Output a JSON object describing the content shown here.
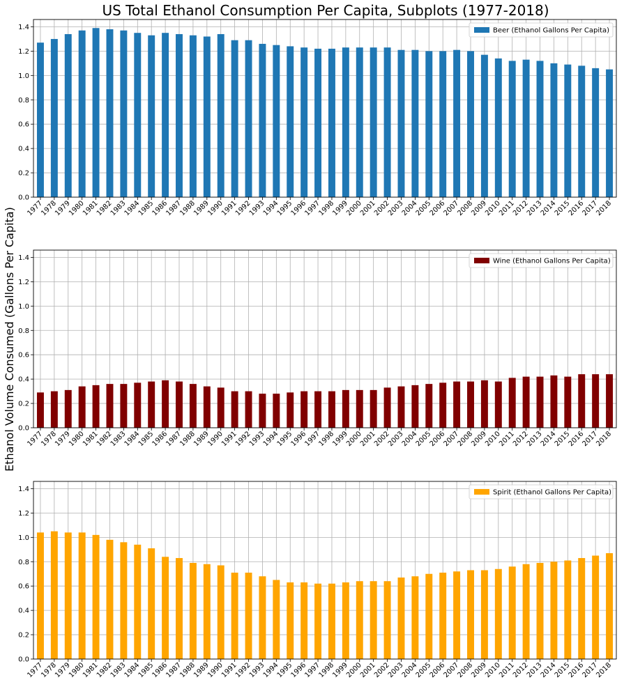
{
  "chart_data": {
    "title": "US Total Ethanol Consumption Per Capita, Subplots (1977-2018)",
    "ylabel": "Ethanol Volume Consumed (Gallons Per Capita)",
    "categories": [
      "1977",
      "1978",
      "1979",
      "1980",
      "1981",
      "1982",
      "1983",
      "1984",
      "1985",
      "1986",
      "1987",
      "1988",
      "1989",
      "1990",
      "1991",
      "1992",
      "1993",
      "1994",
      "1995",
      "1996",
      "1997",
      "1998",
      "1999",
      "2000",
      "2001",
      "2002",
      "2003",
      "2004",
      "2005",
      "2006",
      "2007",
      "2008",
      "2009",
      "2010",
      "2011",
      "2012",
      "2013",
      "2014",
      "2015",
      "2016",
      "2017",
      "2018"
    ],
    "charts": [
      {
        "type": "bar",
        "series_name": "Beer (Ethanol Gallons Per Capita)",
        "color": "#1f77b4",
        "ylim": [
          0,
          1.46
        ],
        "yticks": [
          "0.0",
          "0.2",
          "0.4",
          "0.6",
          "0.8",
          "1.0",
          "1.2",
          "1.4"
        ],
        "grid": true,
        "legend": "top-right",
        "values": [
          1.27,
          1.3,
          1.34,
          1.37,
          1.39,
          1.38,
          1.37,
          1.35,
          1.33,
          1.35,
          1.34,
          1.33,
          1.32,
          1.34,
          1.29,
          1.29,
          1.26,
          1.25,
          1.24,
          1.23,
          1.22,
          1.22,
          1.23,
          1.23,
          1.23,
          1.23,
          1.21,
          1.21,
          1.2,
          1.2,
          1.21,
          1.2,
          1.17,
          1.14,
          1.12,
          1.13,
          1.12,
          1.1,
          1.09,
          1.08,
          1.06,
          1.05
        ]
      },
      {
        "type": "bar",
        "series_name": "Wine (Ethanol Gallons Per Capita)",
        "color": "#800000",
        "ylim": [
          0,
          1.46
        ],
        "yticks": [
          "0.0",
          "0.2",
          "0.4",
          "0.6",
          "0.8",
          "1.0",
          "1.2",
          "1.4"
        ],
        "grid": true,
        "legend": "top-right",
        "values": [
          0.29,
          0.3,
          0.31,
          0.34,
          0.35,
          0.36,
          0.36,
          0.37,
          0.38,
          0.39,
          0.38,
          0.36,
          0.34,
          0.33,
          0.3,
          0.3,
          0.28,
          0.28,
          0.29,
          0.3,
          0.3,
          0.3,
          0.31,
          0.31,
          0.31,
          0.33,
          0.34,
          0.35,
          0.36,
          0.37,
          0.38,
          0.38,
          0.39,
          0.38,
          0.41,
          0.42,
          0.42,
          0.43,
          0.42,
          0.44,
          0.44,
          0.44
        ]
      },
      {
        "type": "bar",
        "series_name": "Spirit (Ethanol Gallons Per Capita)",
        "color": "#ffa500",
        "ylim": [
          0,
          1.46
        ],
        "yticks": [
          "0.0",
          "0.2",
          "0.4",
          "0.6",
          "0.8",
          "1.0",
          "1.2",
          "1.4"
        ],
        "grid": true,
        "legend": "top-right",
        "values": [
          1.04,
          1.05,
          1.04,
          1.04,
          1.02,
          0.98,
          0.96,
          0.94,
          0.91,
          0.84,
          0.83,
          0.79,
          0.78,
          0.77,
          0.71,
          0.71,
          0.68,
          0.65,
          0.63,
          0.63,
          0.62,
          0.62,
          0.63,
          0.64,
          0.64,
          0.64,
          0.67,
          0.68,
          0.7,
          0.71,
          0.72,
          0.73,
          0.73,
          0.74,
          0.76,
          0.78,
          0.79,
          0.8,
          0.81,
          0.83,
          0.85,
          0.87
        ]
      }
    ]
  }
}
